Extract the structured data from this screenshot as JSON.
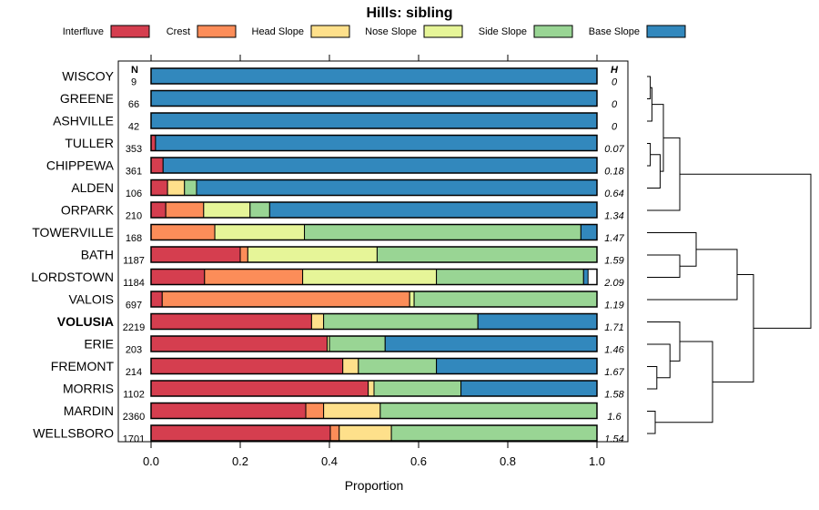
{
  "chart_data": {
    "type": "bar",
    "orientation": "horizontal",
    "stacked": true,
    "title": "Hills: sibling",
    "xlabel": "Proportion",
    "ylabel": "",
    "xlim": [
      0,
      1
    ],
    "xticks": [
      "0.0",
      "0.2",
      "0.4",
      "0.6",
      "0.8",
      "1.0"
    ],
    "n_header": "N",
    "h_header": "H",
    "legend_position": "top",
    "highlight": "VOLUSIA",
    "series": [
      {
        "name": "Interfluve",
        "color": "#d53e4f"
      },
      {
        "name": "Crest",
        "color": "#fc8d59"
      },
      {
        "name": "Head Slope",
        "color": "#fee08b"
      },
      {
        "name": "Nose Slope",
        "color": "#e6f598"
      },
      {
        "name": "Side Slope",
        "color": "#99d594"
      },
      {
        "name": "Base Slope",
        "color": "#3288bd"
      }
    ],
    "categories": [
      "WISCOY",
      "GREENE",
      "ASHVILLE",
      "TULLER",
      "CHIPPEWA",
      "ALDEN",
      "ORPARK",
      "TOWERVILLE",
      "BATH",
      "LORDSTOWN",
      "VALOIS",
      "VOLUSIA",
      "ERIE",
      "FREMONT",
      "MORRIS",
      "MARDIN",
      "WELLSBORO"
    ],
    "n": [
      "9",
      "66",
      "42",
      "353",
      "361",
      "106",
      "210",
      "168",
      "1187",
      "1184",
      "697",
      "2219",
      "203",
      "214",
      "1102",
      "2360",
      "1701"
    ],
    "h": [
      "0",
      "0",
      "0",
      "0.07",
      "0.18",
      "0.64",
      "1.34",
      "1.47",
      "1.59",
      "2.09",
      "1.19",
      "1.71",
      "1.46",
      "1.67",
      "1.58",
      "1.6",
      "1.54"
    ],
    "values": [
      [
        0,
        0,
        0,
        0,
        0,
        1.0
      ],
      [
        0,
        0,
        0,
        0,
        0,
        1.0
      ],
      [
        0,
        0,
        0,
        0,
        0,
        1.0
      ],
      [
        0.01,
        0,
        0,
        0,
        0,
        0.99
      ],
      [
        0.027,
        0,
        0,
        0,
        0,
        0.973
      ],
      [
        0.037,
        0,
        0.038,
        0,
        0.027,
        0.898
      ],
      [
        0.033,
        0.085,
        0,
        0.104,
        0.044,
        0.734
      ],
      [
        0,
        0.143,
        0,
        0.201,
        0.62,
        0.036
      ],
      [
        0.2,
        0.017,
        0,
        0.29,
        0.493,
        0
      ],
      [
        0.12,
        0.22,
        0,
        0.3,
        0.33,
        0.01
      ],
      [
        0.025,
        0.555,
        0,
        0.01,
        0.41,
        0
      ],
      [
        0.36,
        0,
        0.027,
        0,
        0.346,
        0.267
      ],
      [
        0.395,
        0,
        0,
        0.005,
        0.125,
        0.475
      ],
      [
        0.43,
        0,
        0.035,
        0,
        0.175,
        0.36
      ],
      [
        0.487,
        0,
        0.013,
        0,
        0.195,
        0.305
      ],
      [
        0.347,
        0.04,
        0.127,
        0,
        0.486,
        0
      ],
      [
        0.402,
        0.02,
        0.117,
        0,
        0.461,
        0
      ]
    ],
    "dendrogram": {
      "leaves": [
        "WISCOY",
        "GREENE",
        "ASHVILLE",
        "TULLER",
        "CHIPPEWA",
        "ALDEN",
        "ORPARK",
        "TOWERVILLE",
        "BATH",
        "LORDSTOWN",
        "VALOIS",
        "VOLUSIA",
        "ERIE",
        "FREMONT",
        "MORRIS",
        "MARDIN",
        "WELLSBORO"
      ],
      "merges": [
        {
          "left": "L0",
          "right": "L1",
          "height": 0.02,
          "id": "A"
        },
        {
          "left": "A",
          "right": "L2",
          "height": 0.03,
          "id": "B"
        },
        {
          "left": "L3",
          "right": "L4",
          "height": 0.02,
          "id": "C"
        },
        {
          "left": "C",
          "right": "L5",
          "height": 0.08,
          "id": "D"
        },
        {
          "left": "B",
          "right": "D",
          "height": 0.1,
          "id": "E"
        },
        {
          "left": "E",
          "right": "L6",
          "height": 0.2,
          "id": "F"
        },
        {
          "left": "L8",
          "right": "L9",
          "height": 0.2,
          "id": "G"
        },
        {
          "left": "L7",
          "right": "G",
          "height": 0.3,
          "id": "H"
        },
        {
          "left": "H",
          "right": "L10",
          "height": 0.55,
          "id": "I"
        },
        {
          "left": "L13",
          "right": "L14",
          "height": 0.06,
          "id": "J"
        },
        {
          "left": "L12",
          "right": "J",
          "height": 0.14,
          "id": "K"
        },
        {
          "left": "L11",
          "right": "K",
          "height": 0.2,
          "id": "M"
        },
        {
          "left": "L15",
          "right": "L16",
          "height": 0.05,
          "id": "N"
        },
        {
          "left": "M",
          "right": "N",
          "height": 0.4,
          "id": "O"
        },
        {
          "left": "I",
          "right": "O",
          "height": 0.65,
          "id": "P"
        },
        {
          "left": "F",
          "right": "P",
          "height": 1.0,
          "id": "Q"
        }
      ]
    }
  }
}
